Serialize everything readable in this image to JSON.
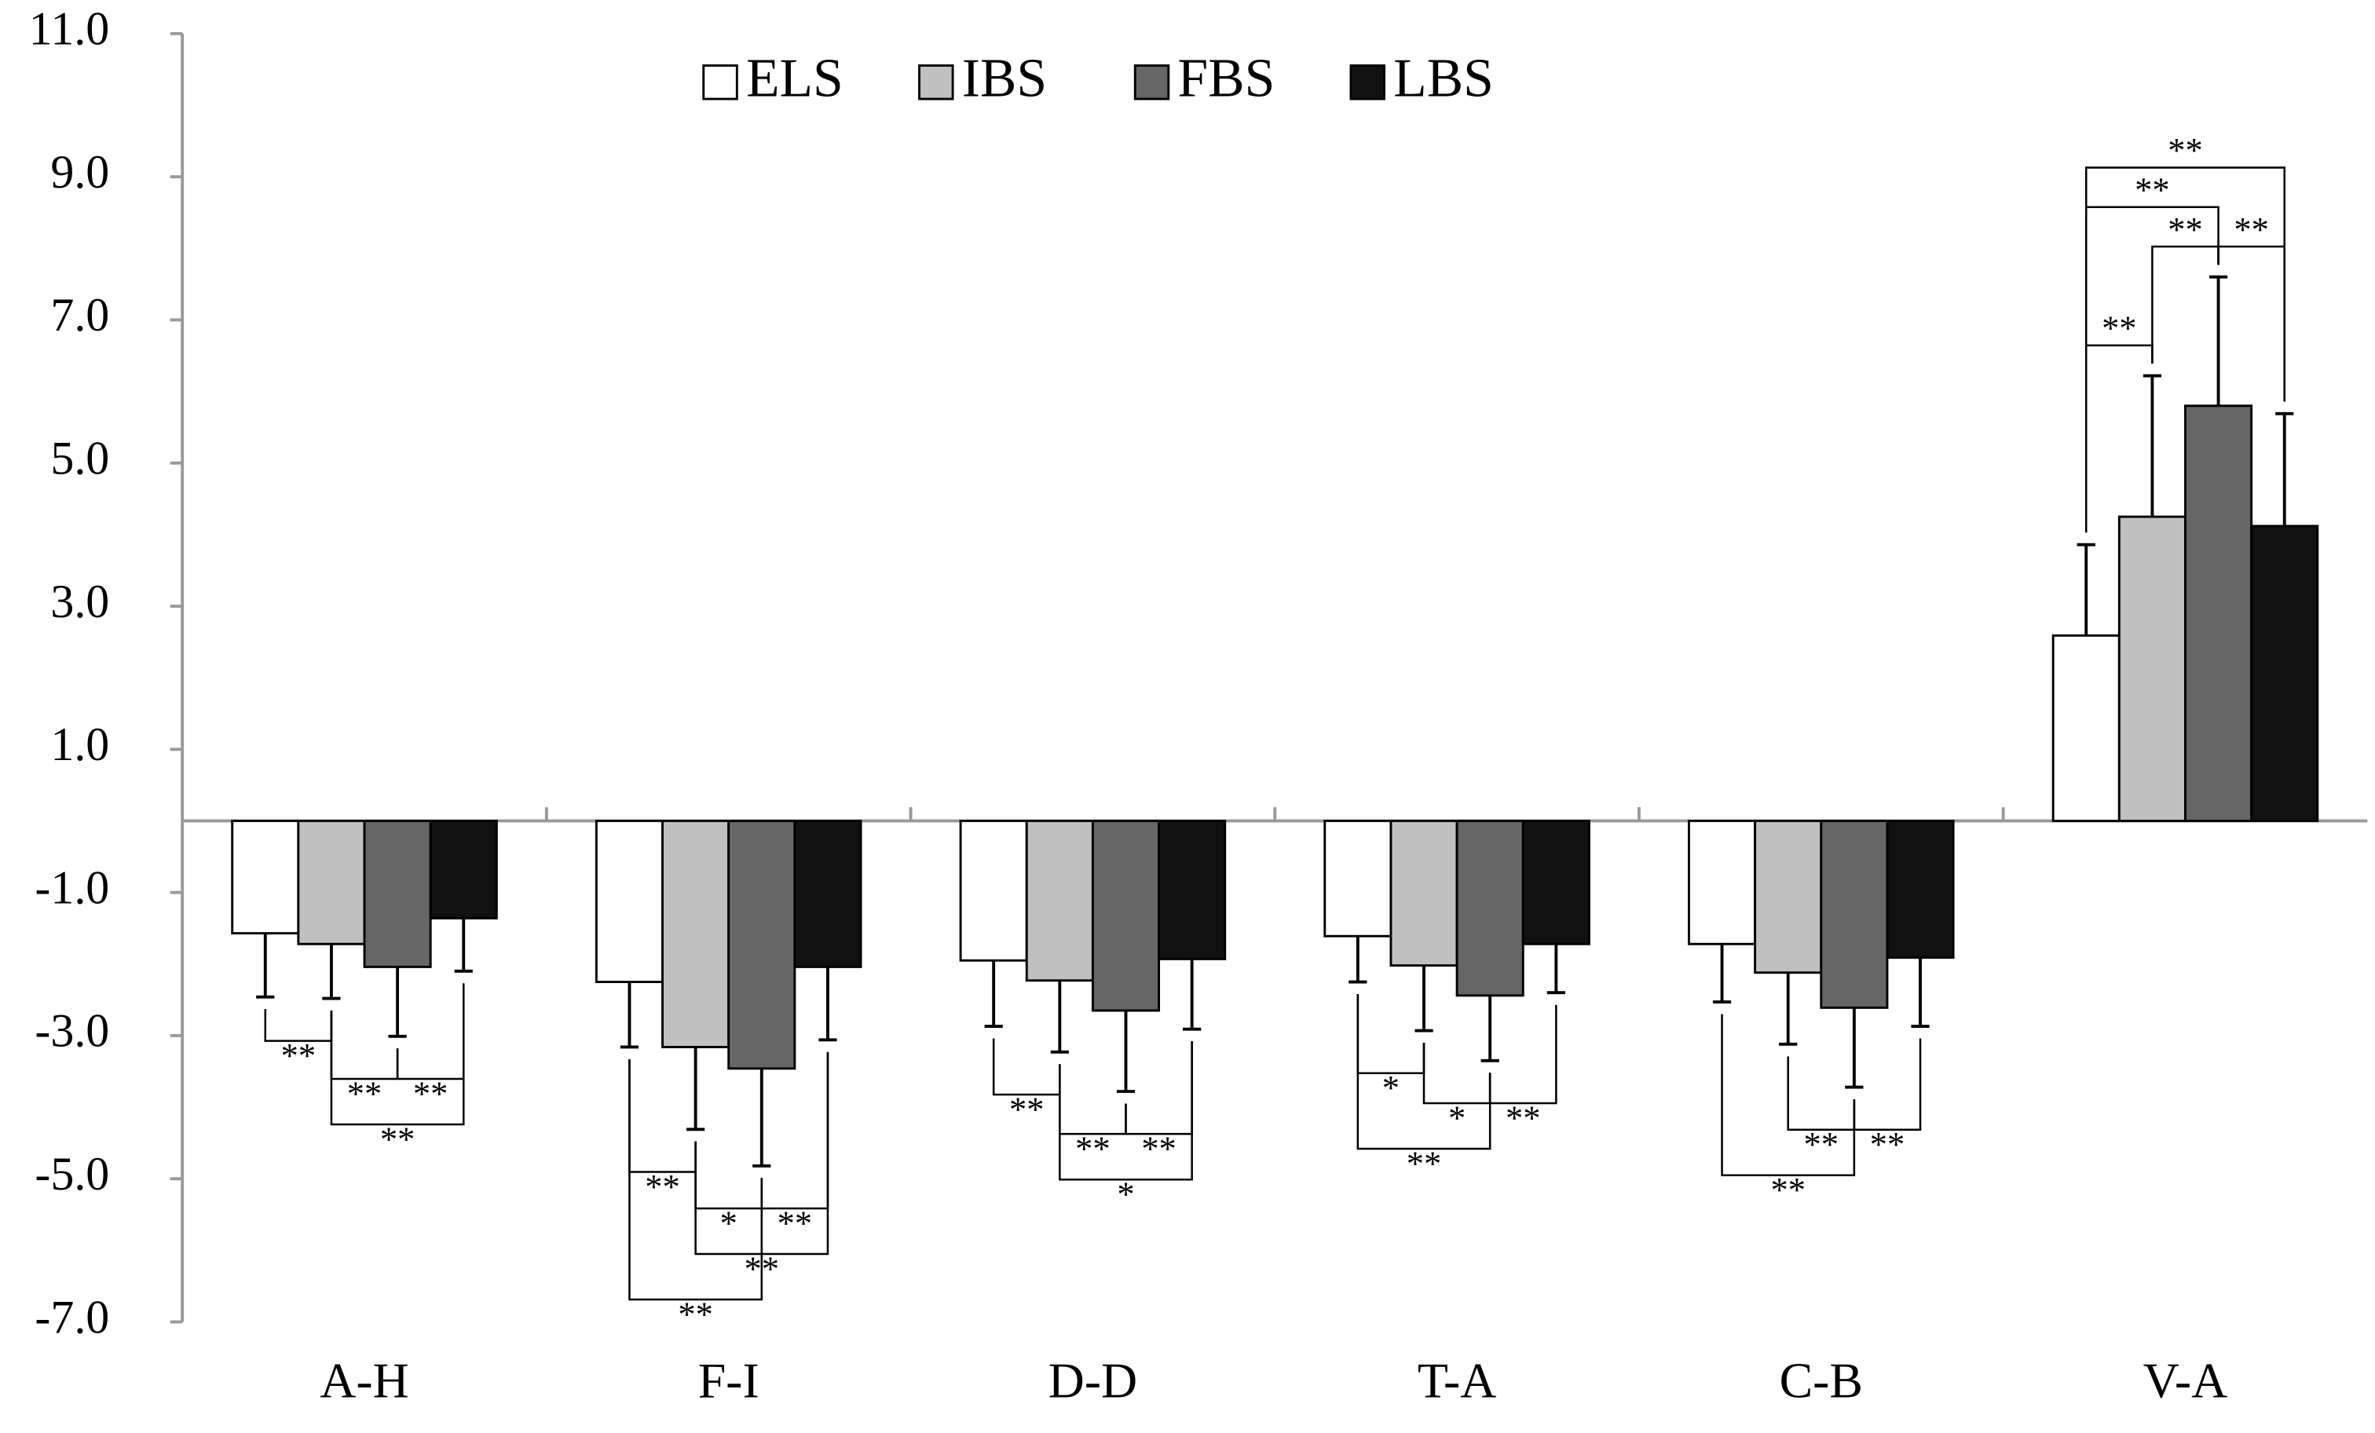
{
  "chart_data": {
    "type": "bar",
    "categories": [
      "A-H",
      "F-I",
      "D-D",
      "T-A",
      "C-B",
      "V-A"
    ],
    "series": [
      {
        "name": "ELS",
        "color": "#ffffff",
        "values": [
          -1.57,
          -2.25,
          -1.95,
          -1.61,
          -1.72,
          2.59
        ],
        "errors": [
          0.89,
          0.91,
          0.92,
          0.64,
          0.81,
          1.27
        ]
      },
      {
        "name": "IBS",
        "color": "#c0c0c0",
        "values": [
          -1.72,
          -3.16,
          -2.23,
          -2.02,
          -2.12,
          4.25
        ],
        "errors": [
          0.76,
          1.15,
          1.0,
          0.91,
          1.0,
          1.97
        ]
      },
      {
        "name": "FBS",
        "color": "#666666",
        "values": [
          -2.04,
          -3.46,
          -2.65,
          -2.44,
          -2.61,
          5.8
        ],
        "errors": [
          0.97,
          1.36,
          1.13,
          0.91,
          1.11,
          1.8
        ]
      },
      {
        "name": "LBS",
        "color": "#111111",
        "values": [
          -1.36,
          -2.04,
          -1.93,
          -1.72,
          -1.91,
          4.12
        ],
        "errors": [
          0.74,
          1.02,
          0.98,
          0.68,
          0.96,
          1.57
        ]
      }
    ],
    "ylim": [
      -7,
      11
    ],
    "yticks": [
      {
        "value": -7,
        "label": "-7.0"
      },
      {
        "value": -5,
        "label": "-5.0"
      },
      {
        "value": -3,
        "label": "-3.0"
      },
      {
        "value": -1,
        "label": "-1.0"
      },
      {
        "value": 1,
        "label": "1.0"
      },
      {
        "value": 3,
        "label": "3.0"
      },
      {
        "value": 5,
        "label": "5.0"
      },
      {
        "value": 7,
        "label": "7.0"
      },
      {
        "value": 9,
        "label": "9.0"
      },
      {
        "value": 11,
        "label": "11.0"
      }
    ],
    "annotations": [
      {
        "category": "A-H",
        "between": [
          "ELS",
          "IBS"
        ],
        "label": "**"
      },
      {
        "category": "A-H",
        "between": [
          "IBS",
          "FBS"
        ],
        "label": "**"
      },
      {
        "category": "A-H",
        "between": [
          "FBS",
          "LBS"
        ],
        "label": "**"
      },
      {
        "category": "A-H",
        "between": [
          "IBS",
          "LBS"
        ],
        "label": "**"
      },
      {
        "category": "F-I",
        "between": [
          "ELS",
          "IBS"
        ],
        "label": "**"
      },
      {
        "category": "F-I",
        "between": [
          "IBS",
          "FBS"
        ],
        "label": "*"
      },
      {
        "category": "F-I",
        "between": [
          "FBS",
          "LBS"
        ],
        "label": "**"
      },
      {
        "category": "F-I",
        "between": [
          "IBS",
          "LBS"
        ],
        "label": "**"
      },
      {
        "category": "F-I",
        "between": [
          "ELS",
          "FBS"
        ],
        "label": "**"
      },
      {
        "category": "D-D",
        "between": [
          "ELS",
          "IBS"
        ],
        "label": "**"
      },
      {
        "category": "D-D",
        "between": [
          "FBS",
          "LBS"
        ],
        "label": "**"
      },
      {
        "category": "D-D",
        "between": [
          "IBS",
          "FBS"
        ],
        "label": "**"
      },
      {
        "category": "D-D",
        "between": [
          "IBS",
          "LBS"
        ],
        "label": "*"
      },
      {
        "category": "T-A",
        "between": [
          "ELS",
          "IBS"
        ],
        "label": "*"
      },
      {
        "category": "T-A",
        "between": [
          "IBS",
          "FBS"
        ],
        "label": "*"
      },
      {
        "category": "T-A",
        "between": [
          "FBS",
          "LBS"
        ],
        "label": "**"
      },
      {
        "category": "T-A",
        "between": [
          "ELS",
          "FBS"
        ],
        "label": "**"
      },
      {
        "category": "C-B",
        "between": [
          "IBS",
          "FBS"
        ],
        "label": "**"
      },
      {
        "category": "C-B",
        "between": [
          "ELS",
          "FBS"
        ],
        "label": "**"
      },
      {
        "category": "C-B",
        "between": [
          "FBS",
          "LBS"
        ],
        "label": "**"
      },
      {
        "category": "V-A",
        "between": [
          "ELS",
          "IBS"
        ],
        "label": "**"
      },
      {
        "category": "V-A",
        "between": [
          "IBS",
          "FBS"
        ],
        "label": "**"
      },
      {
        "category": "V-A",
        "between": [
          "ELS",
          "FBS"
        ],
        "label": "**"
      },
      {
        "category": "V-A",
        "between": [
          "FBS",
          "LBS"
        ],
        "label": "**"
      },
      {
        "category": "V-A",
        "between": [
          "ELS",
          "LBS"
        ],
        "label": "**"
      }
    ]
  }
}
